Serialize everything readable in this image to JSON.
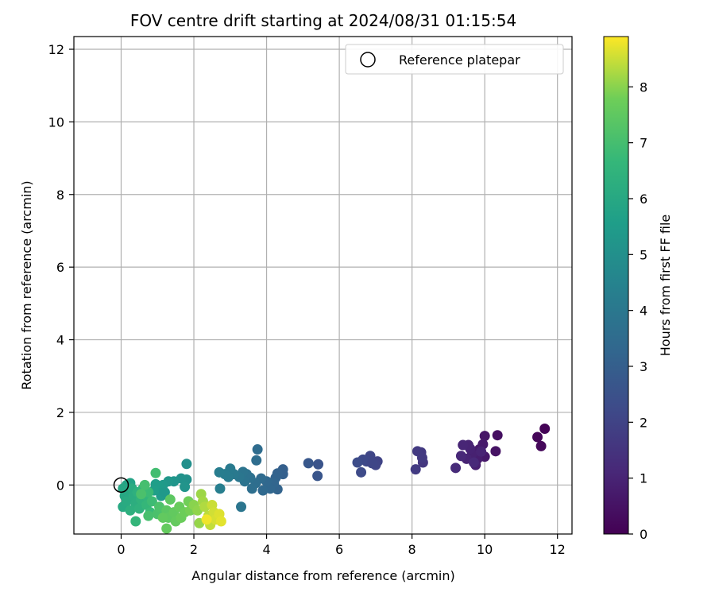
{
  "chart_data": {
    "type": "scatter",
    "title": "FOV centre drift starting at 2024/08/31 01:15:54",
    "xlabel": "Angular distance from reference (arcmin)",
    "ylabel": "Rotation from reference (arcmin)",
    "xlim": [
      -1.3,
      12.4
    ],
    "ylim": [
      -1.35,
      12.35
    ],
    "xticks": [
      0,
      2,
      4,
      6,
      8,
      10,
      12
    ],
    "yticks": [
      0,
      2,
      4,
      6,
      8,
      10,
      12
    ],
    "grid": true,
    "legend": {
      "position": "top-right",
      "label": "Reference platepar"
    },
    "colorbar": {
      "label": "Hours from first FF file",
      "range": [
        0,
        8.9
      ],
      "ticks": [
        0,
        1,
        2,
        3,
        4,
        5,
        6,
        7,
        8
      ],
      "colormap": "viridis"
    },
    "reference_point": {
      "x": 0,
      "y": 0
    },
    "points": [
      {
        "x": 11.65,
        "y": 1.55,
        "c": 0.05
      },
      {
        "x": 11.45,
        "y": 1.32,
        "c": 0.15
      },
      {
        "x": 11.55,
        "y": 1.07,
        "c": 0.2
      },
      {
        "x": 10.35,
        "y": 1.37,
        "c": 0.4
      },
      {
        "x": 10.3,
        "y": 0.93,
        "c": 0.5
      },
      {
        "x": 10.0,
        "y": 1.35,
        "c": 0.6
      },
      {
        "x": 10.0,
        "y": 0.78,
        "c": 0.65
      },
      {
        "x": 9.85,
        "y": 0.98,
        "c": 0.7
      },
      {
        "x": 9.95,
        "y": 1.12,
        "c": 0.75
      },
      {
        "x": 9.8,
        "y": 0.72,
        "c": 0.8
      },
      {
        "x": 9.75,
        "y": 0.55,
        "c": 0.85
      },
      {
        "x": 9.65,
        "y": 0.85,
        "c": 0.9
      },
      {
        "x": 9.6,
        "y": 1.0,
        "c": 0.95
      },
      {
        "x": 9.5,
        "y": 0.72,
        "c": 1.0
      },
      {
        "x": 9.55,
        "y": 1.1,
        "c": 1.0
      },
      {
        "x": 9.4,
        "y": 1.1,
        "c": 1.05
      },
      {
        "x": 9.35,
        "y": 0.8,
        "c": 1.1
      },
      {
        "x": 9.2,
        "y": 0.47,
        "c": 1.2
      },
      {
        "x": 9.7,
        "y": 0.62,
        "c": 1.15
      },
      {
        "x": 9.9,
        "y": 0.92,
        "c": 1.0
      },
      {
        "x": 8.3,
        "y": 0.62,
        "c": 1.6
      },
      {
        "x": 8.25,
        "y": 0.9,
        "c": 1.65
      },
      {
        "x": 8.15,
        "y": 0.93,
        "c": 1.7
      },
      {
        "x": 8.1,
        "y": 0.43,
        "c": 1.75
      },
      {
        "x": 8.28,
        "y": 0.75,
        "c": 1.7
      },
      {
        "x": 7.05,
        "y": 0.65,
        "c": 2.0
      },
      {
        "x": 7.0,
        "y": 0.55,
        "c": 2.05
      },
      {
        "x": 6.85,
        "y": 0.8,
        "c": 2.1
      },
      {
        "x": 6.75,
        "y": 0.65,
        "c": 2.15
      },
      {
        "x": 6.65,
        "y": 0.7,
        "c": 2.2
      },
      {
        "x": 6.6,
        "y": 0.35,
        "c": 2.25
      },
      {
        "x": 6.5,
        "y": 0.62,
        "c": 2.3
      },
      {
        "x": 6.9,
        "y": 0.6,
        "c": 2.1
      },
      {
        "x": 5.42,
        "y": 0.57,
        "c": 2.6
      },
      {
        "x": 5.4,
        "y": 0.25,
        "c": 2.65
      },
      {
        "x": 5.15,
        "y": 0.6,
        "c": 2.7
      },
      {
        "x": 4.45,
        "y": 0.43,
        "c": 3.0
      },
      {
        "x": 4.45,
        "y": 0.3,
        "c": 3.05
      },
      {
        "x": 4.3,
        "y": 0.32,
        "c": 3.1
      },
      {
        "x": 4.25,
        "y": 0.2,
        "c": 3.15
      },
      {
        "x": 4.3,
        "y": -0.12,
        "c": 3.2
      },
      {
        "x": 4.2,
        "y": 0.05,
        "c": 3.25
      },
      {
        "x": 4.1,
        "y": -0.1,
        "c": 3.3
      },
      {
        "x": 4.0,
        "y": 0.1,
        "c": 3.35
      },
      {
        "x": 3.9,
        "y": -0.15,
        "c": 3.4
      },
      {
        "x": 3.85,
        "y": 0.18,
        "c": 3.45
      },
      {
        "x": 3.75,
        "y": 0.98,
        "c": 3.5
      },
      {
        "x": 3.72,
        "y": 0.68,
        "c": 3.55
      },
      {
        "x": 3.7,
        "y": 0.05,
        "c": 3.6
      },
      {
        "x": 3.6,
        "y": -0.1,
        "c": 3.65
      },
      {
        "x": 3.55,
        "y": 0.2,
        "c": 3.7
      },
      {
        "x": 3.45,
        "y": 0.3,
        "c": 3.75
      },
      {
        "x": 3.4,
        "y": 0.1,
        "c": 3.8
      },
      {
        "x": 3.35,
        "y": 0.36,
        "c": 3.85
      },
      {
        "x": 3.3,
        "y": -0.6,
        "c": 3.9
      },
      {
        "x": 3.25,
        "y": 0.22,
        "c": 3.95
      },
      {
        "x": 3.1,
        "y": 0.3,
        "c": 4.05
      },
      {
        "x": 3.0,
        "y": 0.45,
        "c": 4.1
      },
      {
        "x": 2.95,
        "y": 0.22,
        "c": 4.15
      },
      {
        "x": 2.85,
        "y": 0.3,
        "c": 4.2
      },
      {
        "x": 2.7,
        "y": 0.35,
        "c": 4.25
      },
      {
        "x": 2.72,
        "y": -0.1,
        "c": 4.3
      },
      {
        "x": 1.8,
        "y": 0.58,
        "c": 5.0
      },
      {
        "x": 1.8,
        "y": 0.15,
        "c": 5.05
      },
      {
        "x": 1.65,
        "y": 0.18,
        "c": 5.1
      },
      {
        "x": 1.75,
        "y": -0.05,
        "c": 5.15
      },
      {
        "x": 1.45,
        "y": 0.1,
        "c": 5.2
      },
      {
        "x": 1.3,
        "y": 0.1,
        "c": 5.3
      },
      {
        "x": 1.15,
        "y": 0.0,
        "c": 5.4
      },
      {
        "x": 1.1,
        "y": -0.3,
        "c": 5.45
      },
      {
        "x": 1.05,
        "y": -0.05,
        "c": 5.5
      },
      {
        "x": 0.95,
        "y": 0.02,
        "c": 5.55
      },
      {
        "x": 0.9,
        "y": -0.15,
        "c": 5.6
      },
      {
        "x": 1.2,
        "y": -0.2,
        "c": 5.35
      },
      {
        "x": 0.25,
        "y": 0.05,
        "c": 5.8
      },
      {
        "x": 0.15,
        "y": 0.0,
        "c": 5.85
      },
      {
        "x": 0.05,
        "y": -0.1,
        "c": 5.9
      },
      {
        "x": 0.1,
        "y": -0.3,
        "c": 5.95
      },
      {
        "x": 0.2,
        "y": -0.2,
        "c": 6.0
      },
      {
        "x": 0.05,
        "y": -0.6,
        "c": 6.05
      },
      {
        "x": 0.15,
        "y": -0.45,
        "c": 6.1
      },
      {
        "x": 0.3,
        "y": -0.1,
        "c": 6.15
      },
      {
        "x": 0.35,
        "y": -0.3,
        "c": 6.2
      },
      {
        "x": 0.4,
        "y": -0.5,
        "c": 6.25
      },
      {
        "x": 0.25,
        "y": -0.7,
        "c": 6.3
      },
      {
        "x": 0.45,
        "y": -0.2,
        "c": 6.35
      },
      {
        "x": 0.5,
        "y": -0.65,
        "c": 6.4
      },
      {
        "x": 0.55,
        "y": -0.4,
        "c": 6.45
      },
      {
        "x": 0.6,
        "y": -0.1,
        "c": 6.5
      },
      {
        "x": 0.4,
        "y": -1.0,
        "c": 6.6
      },
      {
        "x": 0.7,
        "y": -0.3,
        "c": 6.55
      },
      {
        "x": 0.7,
        "y": -0.55,
        "c": 6.65
      },
      {
        "x": 0.8,
        "y": -0.75,
        "c": 6.75
      },
      {
        "x": 0.75,
        "y": -0.2,
        "c": 6.8
      },
      {
        "x": 0.85,
        "y": -0.45,
        "c": 6.85
      },
      {
        "x": 0.95,
        "y": 0.33,
        "c": 6.95
      },
      {
        "x": 0.65,
        "y": 0.0,
        "c": 7.0
      },
      {
        "x": 0.75,
        "y": -0.85,
        "c": 7.05
      },
      {
        "x": 1.0,
        "y": -0.8,
        "c": 7.1
      },
      {
        "x": 1.05,
        "y": -0.6,
        "c": 7.15
      },
      {
        "x": 0.55,
        "y": -0.25,
        "c": 7.1
      },
      {
        "x": 1.25,
        "y": -0.7,
        "c": 7.4
      },
      {
        "x": 1.35,
        "y": -0.4,
        "c": 7.45
      },
      {
        "x": 1.3,
        "y": -0.9,
        "c": 7.5
      },
      {
        "x": 1.45,
        "y": -0.75,
        "c": 7.55
      },
      {
        "x": 1.5,
        "y": -1.0,
        "c": 7.6
      },
      {
        "x": 1.6,
        "y": -0.6,
        "c": 7.65
      },
      {
        "x": 1.65,
        "y": -0.9,
        "c": 7.7
      },
      {
        "x": 1.75,
        "y": -0.75,
        "c": 7.75
      },
      {
        "x": 1.85,
        "y": -0.45,
        "c": 7.8
      },
      {
        "x": 1.9,
        "y": -0.7,
        "c": 7.85
      },
      {
        "x": 1.25,
        "y": -1.2,
        "c": 7.6
      },
      {
        "x": 1.15,
        "y": -0.9,
        "c": 7.55
      },
      {
        "x": 2.0,
        "y": -0.55,
        "c": 8.0
      },
      {
        "x": 2.1,
        "y": -0.7,
        "c": 8.05
      },
      {
        "x": 2.15,
        "y": -1.05,
        "c": 8.1
      },
      {
        "x": 2.2,
        "y": -0.25,
        "c": 8.15
      },
      {
        "x": 2.25,
        "y": -0.45,
        "c": 8.2
      },
      {
        "x": 2.3,
        "y": -0.6,
        "c": 8.3
      },
      {
        "x": 2.4,
        "y": -0.85,
        "c": 8.4
      },
      {
        "x": 2.45,
        "y": -1.1,
        "c": 8.45
      },
      {
        "x": 2.5,
        "y": -0.55,
        "c": 8.5
      },
      {
        "x": 2.55,
        "y": -0.75,
        "c": 8.55
      },
      {
        "x": 2.6,
        "y": -0.95,
        "c": 8.6
      },
      {
        "x": 2.7,
        "y": -0.8,
        "c": 8.65
      },
      {
        "x": 2.75,
        "y": -1.0,
        "c": 8.7
      },
      {
        "x": 2.35,
        "y": -0.95,
        "c": 8.8
      }
    ]
  }
}
